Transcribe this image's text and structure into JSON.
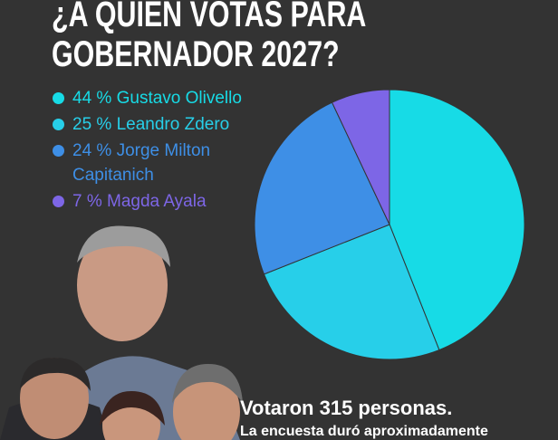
{
  "chart_data": {
    "type": "pie",
    "title": "¿A QUIEN VOTAS PARA GOBERNADOR 2027?",
    "categories": [
      "Gustavo Olivello",
      "Leandro Zdero",
      "Jorge Milton Capitanich",
      "Magda Ayala"
    ],
    "values": [
      44,
      25,
      24,
      7
    ],
    "value_labels": [
      "44 %",
      "25 %",
      "24 %",
      "7 %"
    ],
    "colors": [
      "#17dbe6",
      "#27cfe9",
      "#3e8fe6",
      "#7d66e6"
    ],
    "annotations": [
      "Votaron 315 personas.",
      "La encuesta duró aproximadamente"
    ]
  }
}
